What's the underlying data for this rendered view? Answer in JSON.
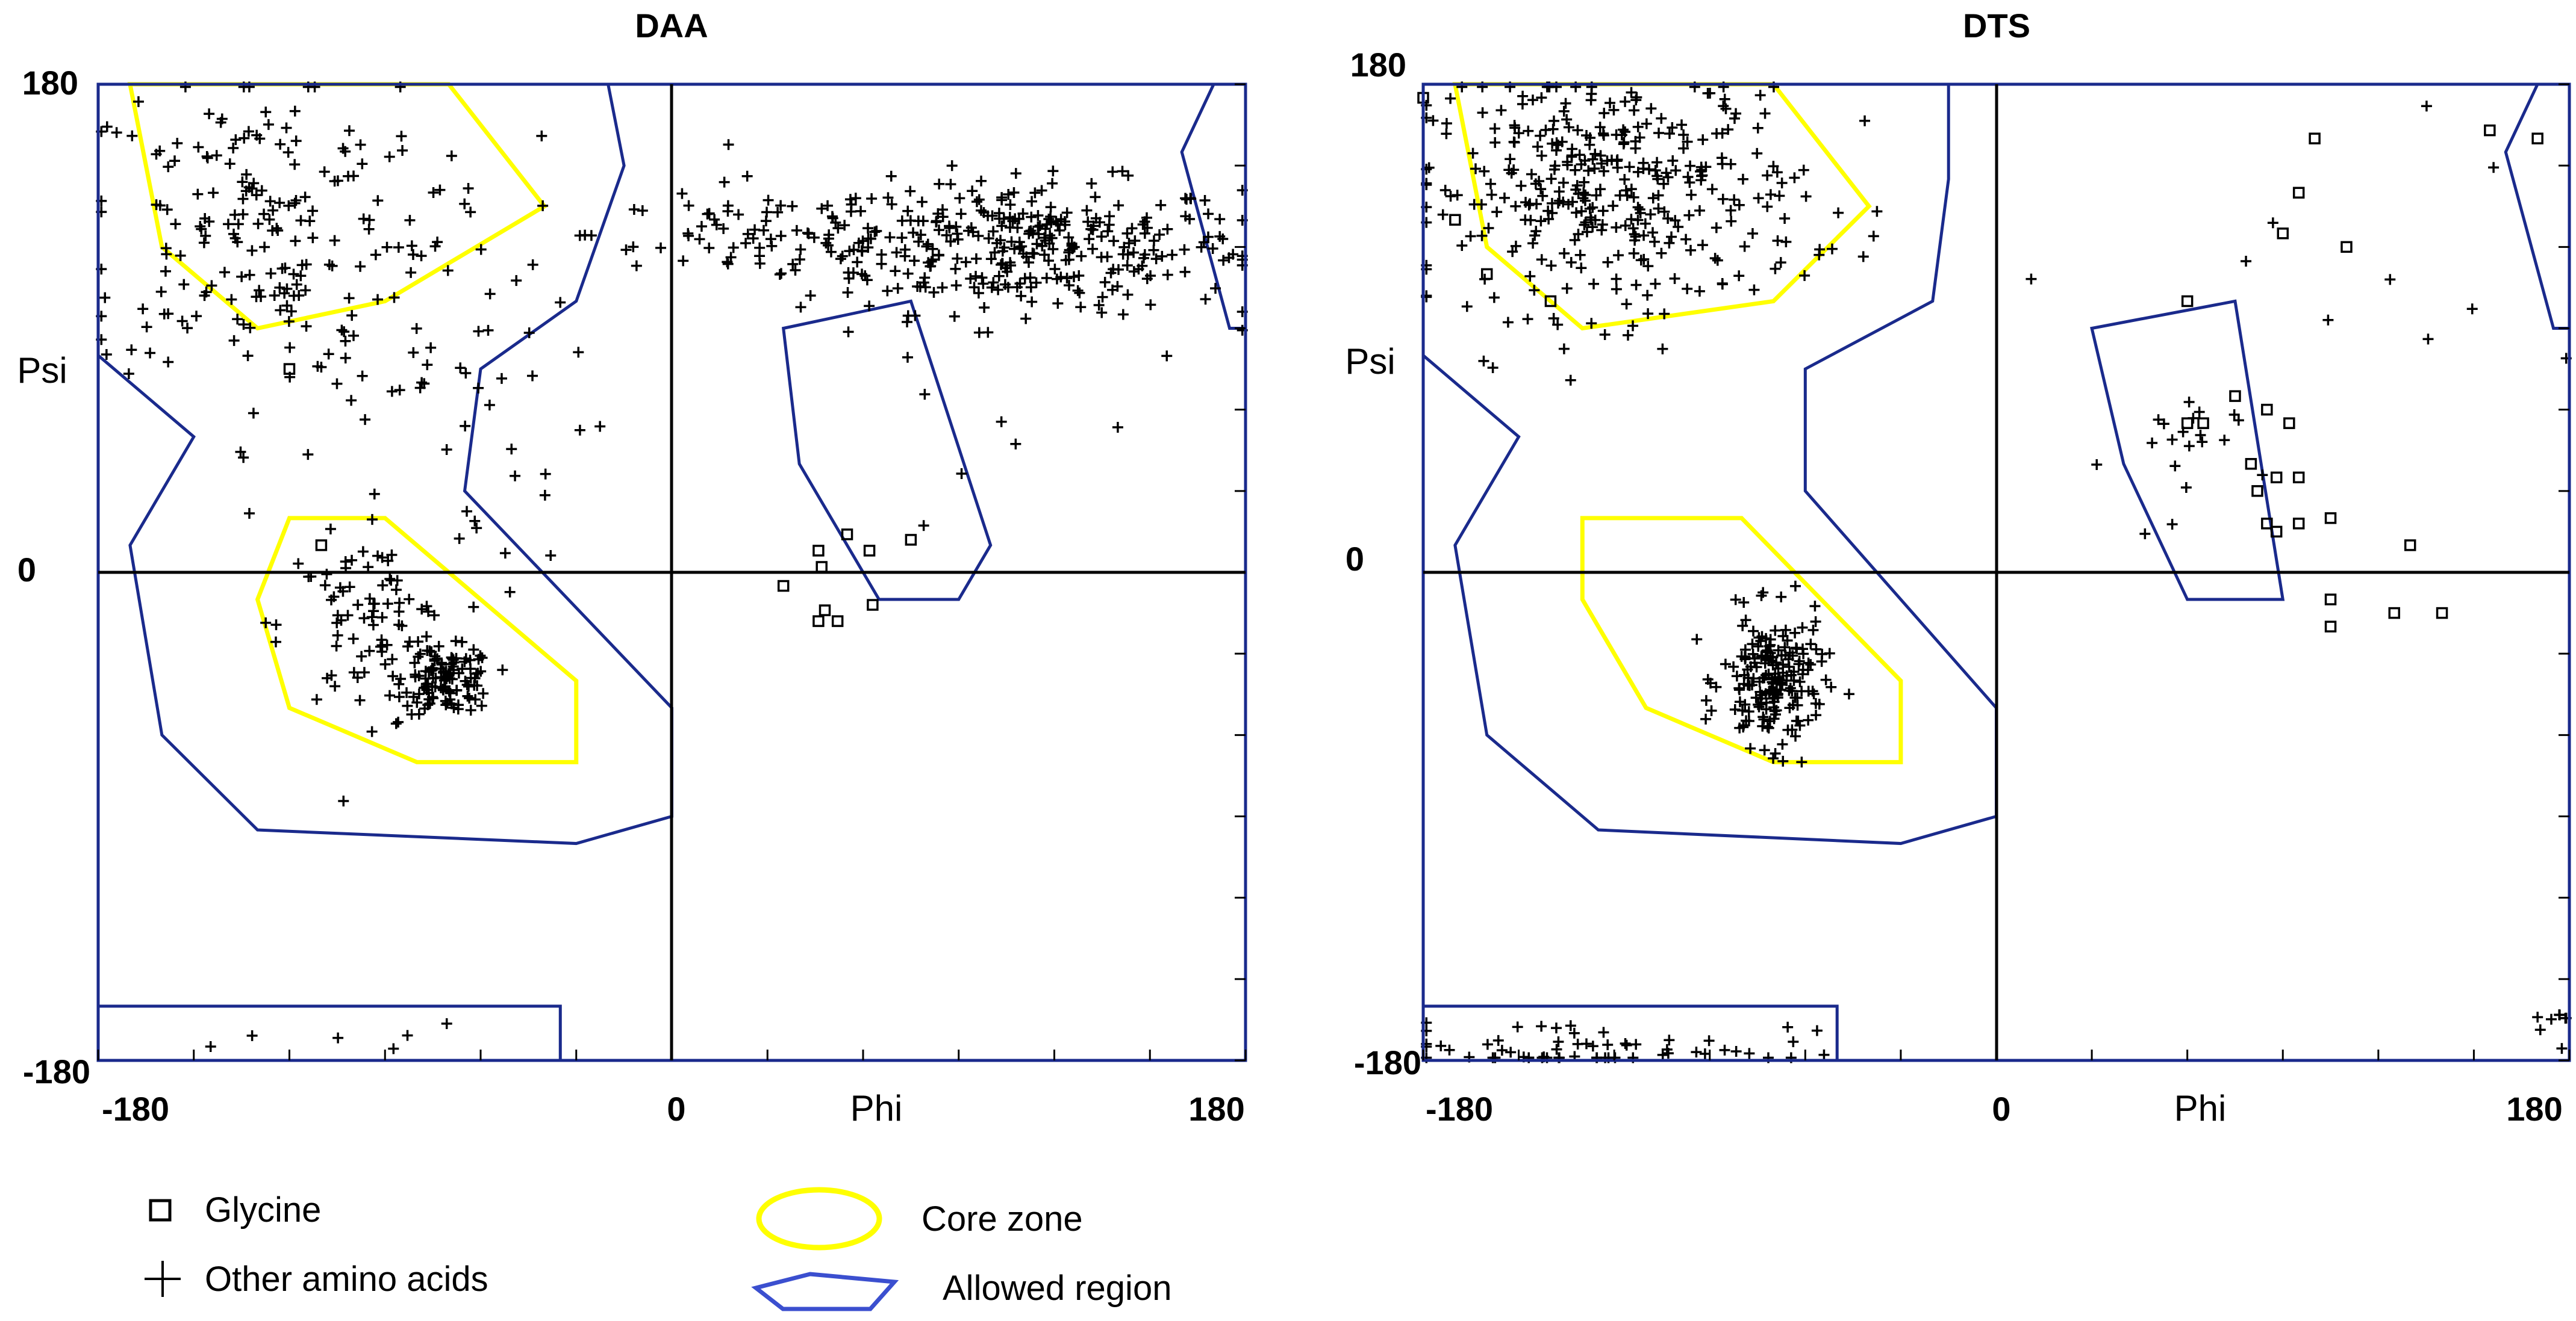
{
  "figure_type": "Ramachandran plots",
  "colors": {
    "core": "#ffff00",
    "allowed": "#1a2a8c",
    "points": "#000000",
    "axes": "#000000"
  },
  "legend": {
    "glycine": "Glycine",
    "other": "Other amino acids",
    "core": "Core zone",
    "allowed": "Allowed region"
  },
  "chart_data": [
    {
      "type": "scatter",
      "title": "DAA",
      "xlabel": "Phi",
      "ylabel": "Psi",
      "xlim": [
        -180,
        180
      ],
      "ylim": [
        -180,
        180
      ],
      "x_ticks": [
        "-180",
        "0",
        "180"
      ],
      "x_label_text": "Phi",
      "y_ticks": [
        "180",
        "0",
        "-180"
      ],
      "y_label_text": "Psi",
      "core_regions": [
        [
          [
            -170,
            180
          ],
          [
            -160,
            120
          ],
          [
            -130,
            90
          ],
          [
            -90,
            100
          ],
          [
            -40,
            135
          ],
          [
            -70,
            180
          ]
        ],
        [
          [
            -120,
            20
          ],
          [
            -90,
            20
          ],
          [
            -30,
            -40
          ],
          [
            -30,
            -70
          ],
          [
            -80,
            -70
          ],
          [
            -120,
            -50
          ],
          [
            -130,
            -10
          ]
        ]
      ],
      "allowed_regions": [
        [
          [
            -180,
            180
          ],
          [
            -20,
            180
          ],
          [
            -15,
            150
          ],
          [
            -30,
            100
          ],
          [
            -60,
            75
          ],
          [
            -65,
            30
          ],
          [
            0,
            -50
          ],
          [
            0,
            -90
          ],
          [
            -30,
            -100
          ],
          [
            -130,
            -95
          ],
          [
            -160,
            -60
          ],
          [
            -170,
            10
          ],
          [
            -150,
            50
          ],
          [
            -180,
            80
          ]
        ],
        [
          [
            -180,
            -160
          ],
          [
            -35,
            -160
          ],
          [
            -35,
            -180
          ],
          [
            -180,
            -180
          ]
        ],
        [
          [
            35,
            90
          ],
          [
            75,
            100
          ],
          [
            100,
            10
          ],
          [
            90,
            -10
          ],
          [
            65,
            -10
          ],
          [
            40,
            40
          ]
        ],
        [
          [
            170,
            180
          ],
          [
            180,
            180
          ],
          [
            180,
            90
          ],
          [
            175,
            90
          ],
          [
            160,
            155
          ]
        ]
      ],
      "glycine_points": [
        [
          46,
          -18
        ],
        [
          55,
          14
        ],
        [
          35,
          -5
        ],
        [
          47,
          2
        ],
        [
          46,
          8
        ],
        [
          62,
          8
        ],
        [
          75,
          12
        ],
        [
          63,
          -12
        ],
        [
          52,
          -18
        ],
        [
          48,
          -14
        ],
        [
          -120,
          75
        ],
        [
          -110,
          10
        ]
      ],
      "other_clusters": [
        {
          "cx": 110,
          "cy": 120,
          "sx": 35,
          "sy": 12,
          "n": 330
        },
        {
          "cx": 30,
          "cy": 125,
          "sx": 28,
          "sy": 10,
          "n": 70
        },
        {
          "cx": -70,
          "cy": -40,
          "sx": 7,
          "sy": 6,
          "n": 110
        },
        {
          "cx": -95,
          "cy": -20,
          "sx": 14,
          "sy": 16,
          "n": 90
        },
        {
          "cx": -130,
          "cy": 130,
          "sx": 28,
          "sy": 30,
          "n": 170
        },
        {
          "cx": -90,
          "cy": 80,
          "sx": 35,
          "sy": 40,
          "n": 80
        },
        {
          "cx": -100,
          "cy": -175,
          "sx": 35,
          "sy": 4,
          "n": 6
        },
        {
          "cx": 100,
          "cy": 60,
          "sx": 40,
          "sy": 30,
          "n": 8
        }
      ]
    },
    {
      "type": "scatter",
      "title": "DTS",
      "xlabel": "Phi",
      "ylabel": "Psi",
      "xlim": [
        -180,
        180
      ],
      "ylim": [
        -180,
        180
      ],
      "x_ticks": [
        "-180",
        "0",
        "180"
      ],
      "x_label_text": "Phi",
      "y_ticks": [
        "180",
        "0",
        "-180"
      ],
      "y_label_text": "Psi",
      "core_regions": [
        [
          [
            -170,
            180
          ],
          [
            -160,
            120
          ],
          [
            -130,
            90
          ],
          [
            -70,
            100
          ],
          [
            -40,
            135
          ],
          [
            -70,
            180
          ]
        ],
        [
          [
            -130,
            20
          ],
          [
            -80,
            20
          ],
          [
            -30,
            -40
          ],
          [
            -30,
            -70
          ],
          [
            -70,
            -70
          ],
          [
            -110,
            -50
          ],
          [
            -130,
            -10
          ]
        ]
      ],
      "allowed_regions": [
        [
          [
            -180,
            180
          ],
          [
            -15,
            180
          ],
          [
            -15,
            145
          ],
          [
            -20,
            100
          ],
          [
            -60,
            75
          ],
          [
            -60,
            30
          ],
          [
            0,
            -50
          ],
          [
            0,
            -90
          ],
          [
            -30,
            -100
          ],
          [
            -125,
            -95
          ],
          [
            -160,
            -60
          ],
          [
            -170,
            10
          ],
          [
            -150,
            50
          ],
          [
            -180,
            80
          ]
        ],
        [
          [
            -180,
            -160
          ],
          [
            -50,
            -160
          ],
          [
            -50,
            -180
          ],
          [
            -180,
            -180
          ]
        ],
        [
          [
            30,
            90
          ],
          [
            75,
            100
          ],
          [
            90,
            -10
          ],
          [
            60,
            -10
          ],
          [
            40,
            40
          ]
        ],
        [
          [
            170,
            180
          ],
          [
            180,
            180
          ],
          [
            180,
            90
          ],
          [
            175,
            90
          ],
          [
            160,
            155
          ]
        ]
      ],
      "glycine_points": [
        [
          -180,
          175
        ],
        [
          -170,
          130
        ],
        [
          -160,
          110
        ],
        [
          -140,
          100
        ],
        [
          60,
          55
        ],
        [
          65,
          55
        ],
        [
          75,
          65
        ],
        [
          85,
          60
        ],
        [
          92,
          55
        ],
        [
          80,
          40
        ],
        [
          88,
          35
        ],
        [
          95,
          35
        ],
        [
          82,
          30
        ],
        [
          85,
          18
        ],
        [
          88,
          15
        ],
        [
          95,
          18
        ],
        [
          105,
          20
        ],
        [
          130,
          10
        ],
        [
          105,
          -10
        ],
        [
          105,
          -20
        ],
        [
          125,
          -15
        ],
        [
          140,
          -15
        ],
        [
          155,
          163
        ],
        [
          170,
          160
        ],
        [
          100,
          160
        ],
        [
          95,
          140
        ],
        [
          90,
          125
        ],
        [
          110,
          120
        ],
        [
          60,
          100
        ]
      ],
      "other_clusters": [
        {
          "cx": -120,
          "cy": 140,
          "sx": 30,
          "sy": 22,
          "n": 360
        },
        {
          "cx": -70,
          "cy": -40,
          "sx": 8,
          "sy": 12,
          "n": 200
        },
        {
          "cx": -130,
          "cy": -175,
          "sx": 35,
          "sy": 5,
          "n": 60
        },
        {
          "cx": 55,
          "cy": 40,
          "sx": 10,
          "sy": 15,
          "n": 20
        },
        {
          "cx": 175,
          "cy": -165,
          "sx": 5,
          "sy": 10,
          "n": 8
        },
        {
          "cx": 100,
          "cy": 110,
          "sx": 50,
          "sy": 30,
          "n": 10
        }
      ]
    }
  ]
}
